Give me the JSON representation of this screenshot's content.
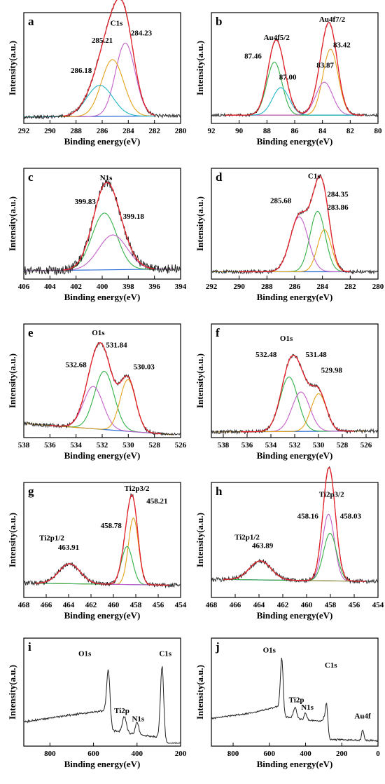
{
  "colors": {
    "raw": "#222222",
    "fit": "#e8212a",
    "background": "#2d6fd6",
    "comp_orange": "#e3a21a",
    "comp_green": "#34b046",
    "comp_cyan": "#20b5c6",
    "comp_magenta": "#c35fc9",
    "comp_olive": "#9a8d1f"
  },
  "chart_data": [
    {
      "type": "line",
      "panel": "a",
      "xlabel": "Binding energy(eV)",
      "ylabel": "Intensity(a.u.)",
      "xlim": [
        292,
        280
      ],
      "xticks": [
        292,
        290,
        288,
        286,
        284,
        282,
        280
      ],
      "labels": [
        {
          "text": "C1s",
          "x": 284.9,
          "y": 1.04
        },
        {
          "text": "284.23",
          "x": 283.0,
          "y": 0.93
        },
        {
          "text": "285.21",
          "x": 286.0,
          "y": 0.85
        },
        {
          "text": "286.18",
          "x": 287.6,
          "y": 0.52
        }
      ],
      "bg": [
        [
          292,
          0.04
        ],
        [
          282,
          0.05
        ]
      ],
      "peaks": [
        {
          "c": 284.23,
          "h": 0.8,
          "w": 0.75,
          "color": "comp_magenta"
        },
        {
          "c": 285.21,
          "h": 0.62,
          "w": 0.85,
          "color": "comp_orange"
        },
        {
          "c": 286.18,
          "h": 0.34,
          "w": 1.0,
          "color": "comp_cyan"
        }
      ],
      "fit_range": [
        289.0,
        282.0
      ],
      "noise": 0.02
    },
    {
      "type": "line",
      "panel": "b",
      "xlabel": "Binding energy(eV)",
      "ylabel": "",
      "xlim": [
        92,
        80
      ],
      "xticks": [
        92,
        90,
        88,
        86,
        84,
        82,
        80
      ],
      "labels": [
        {
          "text": "Au4f7/2",
          "x": 83.3,
          "y": 1.08
        },
        {
          "text": "Au4f5/2",
          "x": 87.3,
          "y": 0.88
        },
        {
          "text": "83.42",
          "x": 82.6,
          "y": 0.8
        },
        {
          "text": "87.46",
          "x": 89.0,
          "y": 0.68
        },
        {
          "text": "83.87",
          "x": 83.8,
          "y": 0.58
        },
        {
          "text": "87.00",
          "x": 86.5,
          "y": 0.45
        }
      ],
      "bg": [
        [
          91,
          0.06
        ],
        [
          81,
          0.06
        ]
      ],
      "peaks": [
        {
          "c": 83.42,
          "h": 0.72,
          "w": 0.55,
          "color": "comp_orange"
        },
        {
          "c": 87.46,
          "h": 0.58,
          "w": 0.55,
          "color": "comp_green"
        },
        {
          "c": 83.87,
          "h": 0.36,
          "w": 0.6,
          "color": "comp_magenta"
        },
        {
          "c": 87.0,
          "h": 0.3,
          "w": 0.6,
          "color": "comp_cyan"
        }
      ],
      "fit_range": [
        91.0,
        81.0
      ],
      "noise": 0.015
    },
    {
      "type": "line",
      "panel": "c",
      "xlabel": "Binding energy(eV)",
      "ylabel": "Intensity(a.u.)",
      "xlim": [
        406,
        394
      ],
      "xticks": [
        406,
        404,
        402,
        400,
        398,
        396,
        394
      ],
      "labels": [
        {
          "text": "N1s",
          "x": 399.7,
          "y": 1.05
        },
        {
          "text": "399.83",
          "x": 401.3,
          "y": 0.79
        },
        {
          "text": "399.18",
          "x": 397.6,
          "y": 0.63
        }
      ],
      "bg": [
        [
          406,
          0.06
        ],
        [
          394.5,
          0.08
        ]
      ],
      "peaks": [
        {
          "c": 399.83,
          "h": 0.62,
          "w": 0.95,
          "color": "comp_green"
        },
        {
          "c": 399.18,
          "h": 0.38,
          "w": 1.1,
          "color": "comp_magenta"
        }
      ],
      "fit_range": [
        403.0,
        396.0
      ],
      "noise": 0.05
    },
    {
      "type": "line",
      "panel": "d",
      "xlabel": "Binding energy(eV)",
      "ylabel": "",
      "xlim": [
        292,
        280
      ],
      "xticks": [
        292,
        290,
        288,
        286,
        284,
        282,
        280
      ],
      "labels": [
        {
          "text": "C1s",
          "x": 284.6,
          "y": 1.07
        },
        {
          "text": "284.35",
          "x": 282.9,
          "y": 0.87
        },
        {
          "text": "285.68",
          "x": 287.0,
          "y": 0.8
        },
        {
          "text": "283.86",
          "x": 282.9,
          "y": 0.73
        }
      ],
      "bg": [
        [
          292,
          0.05
        ],
        [
          282,
          0.05
        ]
      ],
      "peaks": [
        {
          "c": 284.35,
          "h": 0.66,
          "w": 0.55,
          "color": "comp_green"
        },
        {
          "c": 285.68,
          "h": 0.6,
          "w": 0.65,
          "color": "comp_magenta"
        },
        {
          "c": 283.86,
          "h": 0.46,
          "w": 0.5,
          "color": "comp_orange"
        }
      ],
      "fit_range": [
        290.0,
        282.0
      ],
      "noise": 0.02
    },
    {
      "type": "line",
      "panel": "e",
      "xlabel": "Binding energy(eV)",
      "ylabel": "Intensity(a.u.)",
      "xlim": [
        538,
        526
      ],
      "xticks": [
        538,
        536,
        534,
        532,
        530,
        528,
        526
      ],
      "labels": [
        {
          "text": "O1s",
          "x": 532.3,
          "y": 1.06
        },
        {
          "text": "531.84",
          "x": 530.9,
          "y": 0.93
        },
        {
          "text": "532.68",
          "x": 534.0,
          "y": 0.72
        },
        {
          "text": "530.03",
          "x": 528.8,
          "y": 0.7
        }
      ],
      "bg": [
        [
          538,
          0.12
        ],
        [
          526.5,
          0.0
        ]
      ],
      "peaks": [
        {
          "c": 531.84,
          "h": 0.62,
          "w": 0.75,
          "color": "comp_green"
        },
        {
          "c": 532.68,
          "h": 0.45,
          "w": 0.75,
          "color": "comp_magenta"
        },
        {
          "c": 530.03,
          "h": 0.55,
          "w": 0.6,
          "color": "comp_orange"
        }
      ],
      "fit_range": [
        536.0,
        527.5
      ],
      "noise": 0.02
    },
    {
      "type": "line",
      "panel": "f",
      "xlabel": "Binding energy(eV)",
      "ylabel": "",
      "xlim": [
        539,
        525
      ],
      "xticks": [
        538,
        536,
        534,
        532,
        530,
        528,
        526
      ],
      "labels": [
        {
          "text": "O1s",
          "x": 532.7,
          "y": 1.0
        },
        {
          "text": "532.48",
          "x": 534.4,
          "y": 0.83
        },
        {
          "text": "531.48",
          "x": 530.2,
          "y": 0.83
        },
        {
          "text": "529.98",
          "x": 528.9,
          "y": 0.66
        }
      ],
      "bg": [
        [
          539,
          0.03
        ],
        [
          526,
          0.04
        ]
      ],
      "peaks": [
        {
          "c": 532.48,
          "h": 0.58,
          "w": 0.75,
          "color": "comp_green"
        },
        {
          "c": 531.48,
          "h": 0.42,
          "w": 0.75,
          "color": "comp_magenta"
        },
        {
          "c": 529.98,
          "h": 0.4,
          "w": 0.65,
          "color": "comp_orange"
        }
      ],
      "fit_range": [
        536.5,
        527.0
      ],
      "noise": 0.02
    },
    {
      "type": "line",
      "panel": "g",
      "xlabel": "Binding energy(eV)",
      "ylabel": "Intensity(a.u.)",
      "xlim": [
        468,
        454
      ],
      "xticks": [
        468,
        466,
        464,
        462,
        460,
        458,
        456,
        454
      ],
      "labels": [
        {
          "text": "Ti2p3/2",
          "x": 457.9,
          "y": 1.09
        },
        {
          "text": "458.21",
          "x": 456.1,
          "y": 0.96
        },
        {
          "text": "458.78",
          "x": 460.2,
          "y": 0.7
        },
        {
          "text": "Ti2p1/2",
          "x": 465.5,
          "y": 0.57
        },
        {
          "text": "463.91",
          "x": 464.0,
          "y": 0.47
        }
      ],
      "bg": [
        [
          467,
          0.12
        ],
        [
          455,
          0.1
        ]
      ],
      "peaks": [
        {
          "c": 458.21,
          "h": 0.7,
          "w": 0.45,
          "color": "comp_orange"
        },
        {
          "c": 458.78,
          "h": 0.4,
          "w": 0.5,
          "color": "comp_green"
        },
        {
          "c": 463.91,
          "h": 0.21,
          "w": 0.95,
          "color": "comp_magenta"
        }
      ],
      "fit_range": [
        467.0,
        455.0
      ],
      "noise": 0.025
    },
    {
      "type": "line",
      "panel": "h",
      "xlabel": "Binding energy(eV)",
      "ylabel": "",
      "xlim": [
        468,
        454
      ],
      "xticks": [
        468,
        466,
        464,
        462,
        460,
        458,
        456,
        454
      ],
      "labels": [
        {
          "text": "Ti2p3/2",
          "x": 457.9,
          "y": 1.03
        },
        {
          "text": "458.16",
          "x": 459.9,
          "y": 0.8
        },
        {
          "text": "458.03",
          "x": 456.3,
          "y": 0.8
        },
        {
          "text": "Ti2p1/2",
          "x": 465.0,
          "y": 0.58
        },
        {
          "text": "463.89",
          "x": 463.7,
          "y": 0.49
        }
      ],
      "bg": [
        [
          467,
          0.16
        ],
        [
          455,
          0.14
        ]
      ],
      "peaks": [
        {
          "c": 458.16,
          "h": 0.7,
          "w": 0.5,
          "color": "comp_magenta"
        },
        {
          "c": 458.03,
          "h": 0.5,
          "w": 0.55,
          "color": "comp_green"
        },
        {
          "c": 463.89,
          "h": 0.2,
          "w": 0.9,
          "color": "comp_olive"
        }
      ],
      "fit_range": [
        467.0,
        455.0
      ],
      "noise": 0.025
    },
    {
      "type": "line",
      "panel": "i",
      "xlabel": "Binding energy(eV)",
      "ylabel": "Intensity(a.u.)",
      "xlim": [
        920,
        200
      ],
      "xticks": [
        800,
        600,
        400,
        200
      ],
      "labels": [
        {
          "text": "O1s",
          "x": 640,
          "y": 0.98
        },
        {
          "text": "C1s",
          "x": 270,
          "y": 0.98
        },
        {
          "text": "Ti2p",
          "x": 470,
          "y": 0.34
        },
        {
          "text": "N1s",
          "x": 395,
          "y": 0.25
        }
      ],
      "survey": true,
      "survey_base": [
        [
          920,
          0.24
        ],
        [
          700,
          0.32
        ],
        [
          540,
          0.37
        ],
        [
          520,
          0.15
        ],
        [
          460,
          0.12
        ],
        [
          400,
          0.1
        ],
        [
          300,
          0.07
        ],
        [
          280,
          0.0
        ],
        [
          200,
          0.0
        ]
      ],
      "survey_peaks": [
        {
          "c": 531,
          "h": 0.55,
          "w": 2.5
        },
        {
          "c": 458,
          "h": 0.18,
          "w": 3
        },
        {
          "c": 400,
          "h": 0.14,
          "w": 2.5
        },
        {
          "c": 285,
          "h": 0.85,
          "w": 2.5
        }
      ],
      "noise": 0.012
    },
    {
      "type": "line",
      "panel": "j",
      "xlabel": "Binding energy(eV)",
      "ylabel": "",
      "xlim": [
        920,
        0
      ],
      "xticks": [
        800,
        600,
        400,
        200,
        0
      ],
      "labels": [
        {
          "text": "O1s",
          "x": 600,
          "y": 1.02
        },
        {
          "text": "C1s",
          "x": 260,
          "y": 0.85
        },
        {
          "text": "Ti2p",
          "x": 450,
          "y": 0.46
        },
        {
          "text": "N1s",
          "x": 390,
          "y": 0.38
        },
        {
          "text": "Au4f",
          "x": 85,
          "y": 0.28
        }
      ],
      "survey": true,
      "survey_base": [
        [
          920,
          0.28
        ],
        [
          700,
          0.34
        ],
        [
          540,
          0.42
        ],
        [
          520,
          0.3
        ],
        [
          460,
          0.28
        ],
        [
          400,
          0.26
        ],
        [
          300,
          0.25
        ],
        [
          290,
          0.04
        ],
        [
          200,
          0.04
        ],
        [
          0,
          0.03
        ]
      ],
      "survey_peaks": [
        {
          "c": 531,
          "h": 0.6,
          "w": 2.5
        },
        {
          "c": 458,
          "h": 0.12,
          "w": 3
        },
        {
          "c": 400,
          "h": 0.08,
          "w": 2.5
        },
        {
          "c": 285,
          "h": 0.42,
          "w": 2.5
        },
        {
          "c": 84,
          "h": 0.12,
          "w": 2
        }
      ],
      "noise": 0.01
    }
  ]
}
